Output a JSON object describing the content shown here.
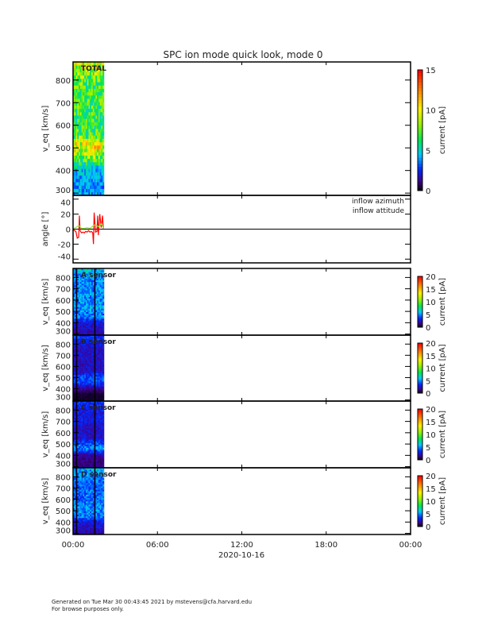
{
  "title": "SPC ion mode quick look, mode 0",
  "footer": {
    "line1": "Generated on Tue Mar 30 00:43:45 2021 by mstevens@cfa.harvard.edu",
    "line2": "For browse purposes only."
  },
  "chart_data": [
    {
      "type": "heatmap",
      "label": "TOTAL",
      "ylabel": "v_eq [km/s]",
      "ylim": [
        290,
        880
      ],
      "yticks": [
        300,
        400,
        500,
        600,
        700,
        800
      ],
      "colorbar": {
        "label": "current [pA]",
        "range": [
          0,
          15
        ],
        "ticks": [
          0,
          5,
          10,
          15
        ]
      },
      "data_time_range_hours": [
        0,
        2.2
      ],
      "profile_v": [
        300,
        350,
        400,
        450,
        500,
        550,
        600,
        650,
        700,
        750,
        800,
        850
      ],
      "profile_current": [
        4,
        4,
        4.5,
        8,
        10,
        7,
        6.5,
        7,
        7,
        7,
        7.5,
        9
      ]
    },
    {
      "type": "line",
      "ylabel": "angle [°]",
      "ylim": [
        -45,
        45
      ],
      "yticks": [
        -40,
        -20,
        0,
        20,
        40
      ],
      "series": [
        {
          "name": "inflow azimuth",
          "color": "#ff0000",
          "x": [
            0,
            0.1,
            0.2,
            0.3,
            0.4,
            0.45,
            0.5,
            0.6,
            0.7,
            0.8,
            0.9,
            1.0,
            1.1,
            1.2,
            1.3,
            1.4,
            1.45,
            1.5,
            1.6,
            1.7,
            1.75,
            1.8,
            1.9,
            2.0,
            2.1,
            2.15
          ],
          "y": [
            0,
            -2,
            -3,
            -12,
            -11,
            18,
            -2,
            -5,
            -4,
            -5,
            -3,
            -4,
            -2,
            -4,
            -3,
            -5,
            -20,
            22,
            -4,
            -3,
            18,
            -8,
            20,
            2,
            18,
            1
          ]
        },
        {
          "name": "inflow attitude",
          "color": "#88ee22",
          "x": [
            0,
            0.2,
            0.4,
            0.6,
            0.8,
            1.0,
            1.2,
            1.4,
            1.6,
            1.8,
            2.0,
            2.15
          ],
          "y": [
            1,
            2,
            5,
            1,
            1,
            2,
            1,
            4,
            6,
            3,
            7,
            2
          ]
        }
      ]
    },
    {
      "type": "heatmap",
      "label": "A sensor",
      "ylabel": "v_eq [km/s]",
      "ylim": [
        290,
        880
      ],
      "yticks": [
        300,
        400,
        500,
        600,
        700,
        800
      ],
      "colorbar": {
        "label": "current [pA]",
        "range": [
          0,
          20
        ],
        "ticks": [
          0,
          5,
          10,
          15,
          20
        ]
      },
      "profile_v": [
        300,
        350,
        400,
        450,
        500,
        550,
        600,
        650,
        700,
        750,
        800,
        850
      ],
      "profile_current": [
        2,
        2.5,
        3,
        5,
        5,
        5.5,
        5,
        5,
        5,
        5,
        5,
        6
      ]
    },
    {
      "type": "heatmap",
      "label": "B sensor",
      "ylabel": "v_eq [km/s]",
      "ylim": [
        290,
        880
      ],
      "yticks": [
        300,
        400,
        500,
        600,
        700,
        800
      ],
      "colorbar": {
        "label": "current [pA]",
        "range": [
          0,
          20
        ],
        "ticks": [
          0,
          5,
          10,
          15,
          20
        ]
      },
      "profile_v": [
        300,
        350,
        400,
        450,
        500,
        550,
        600,
        650,
        700,
        750,
        800,
        850
      ],
      "profile_current": [
        0.5,
        0.6,
        2,
        4,
        4,
        2.5,
        2.5,
        2.5,
        2.5,
        2.5,
        3,
        3.5
      ]
    },
    {
      "type": "heatmap",
      "label": "C sensor",
      "ylabel": "v_eq [km/s]",
      "ylim": [
        290,
        880
      ],
      "yticks": [
        300,
        400,
        500,
        600,
        700,
        800
      ],
      "colorbar": {
        "label": "current [pA]",
        "range": [
          0,
          20
        ],
        "ticks": [
          0,
          5,
          10,
          15,
          20
        ]
      },
      "profile_v": [
        300,
        350,
        400,
        450,
        500,
        550,
        600,
        650,
        700,
        750,
        800,
        850
      ],
      "profile_current": [
        1.5,
        1.5,
        2,
        5,
        4,
        2.5,
        2.5,
        2.5,
        3,
        3,
        3,
        3.5
      ]
    },
    {
      "type": "heatmap",
      "label": "D sensor",
      "ylabel": "v_eq [km/s]",
      "ylim": [
        290,
        880
      ],
      "yticks": [
        300,
        400,
        500,
        600,
        700,
        800
      ],
      "colorbar": {
        "label": "current [pA]",
        "range": [
          0,
          20
        ],
        "ticks": [
          0,
          5,
          10,
          15,
          20
        ]
      },
      "profile_v": [
        300,
        350,
        400,
        450,
        500,
        550,
        600,
        650,
        700,
        750,
        800,
        850
      ],
      "profile_current": [
        2,
        2.5,
        3,
        5,
        5,
        5,
        4.5,
        4.5,
        4.5,
        4.5,
        5,
        5.5
      ]
    }
  ],
  "x_axis": {
    "ticks": [
      "00:00",
      "06:00",
      "12:00",
      "18:00",
      "00:00"
    ],
    "label": "2020-10-16"
  }
}
